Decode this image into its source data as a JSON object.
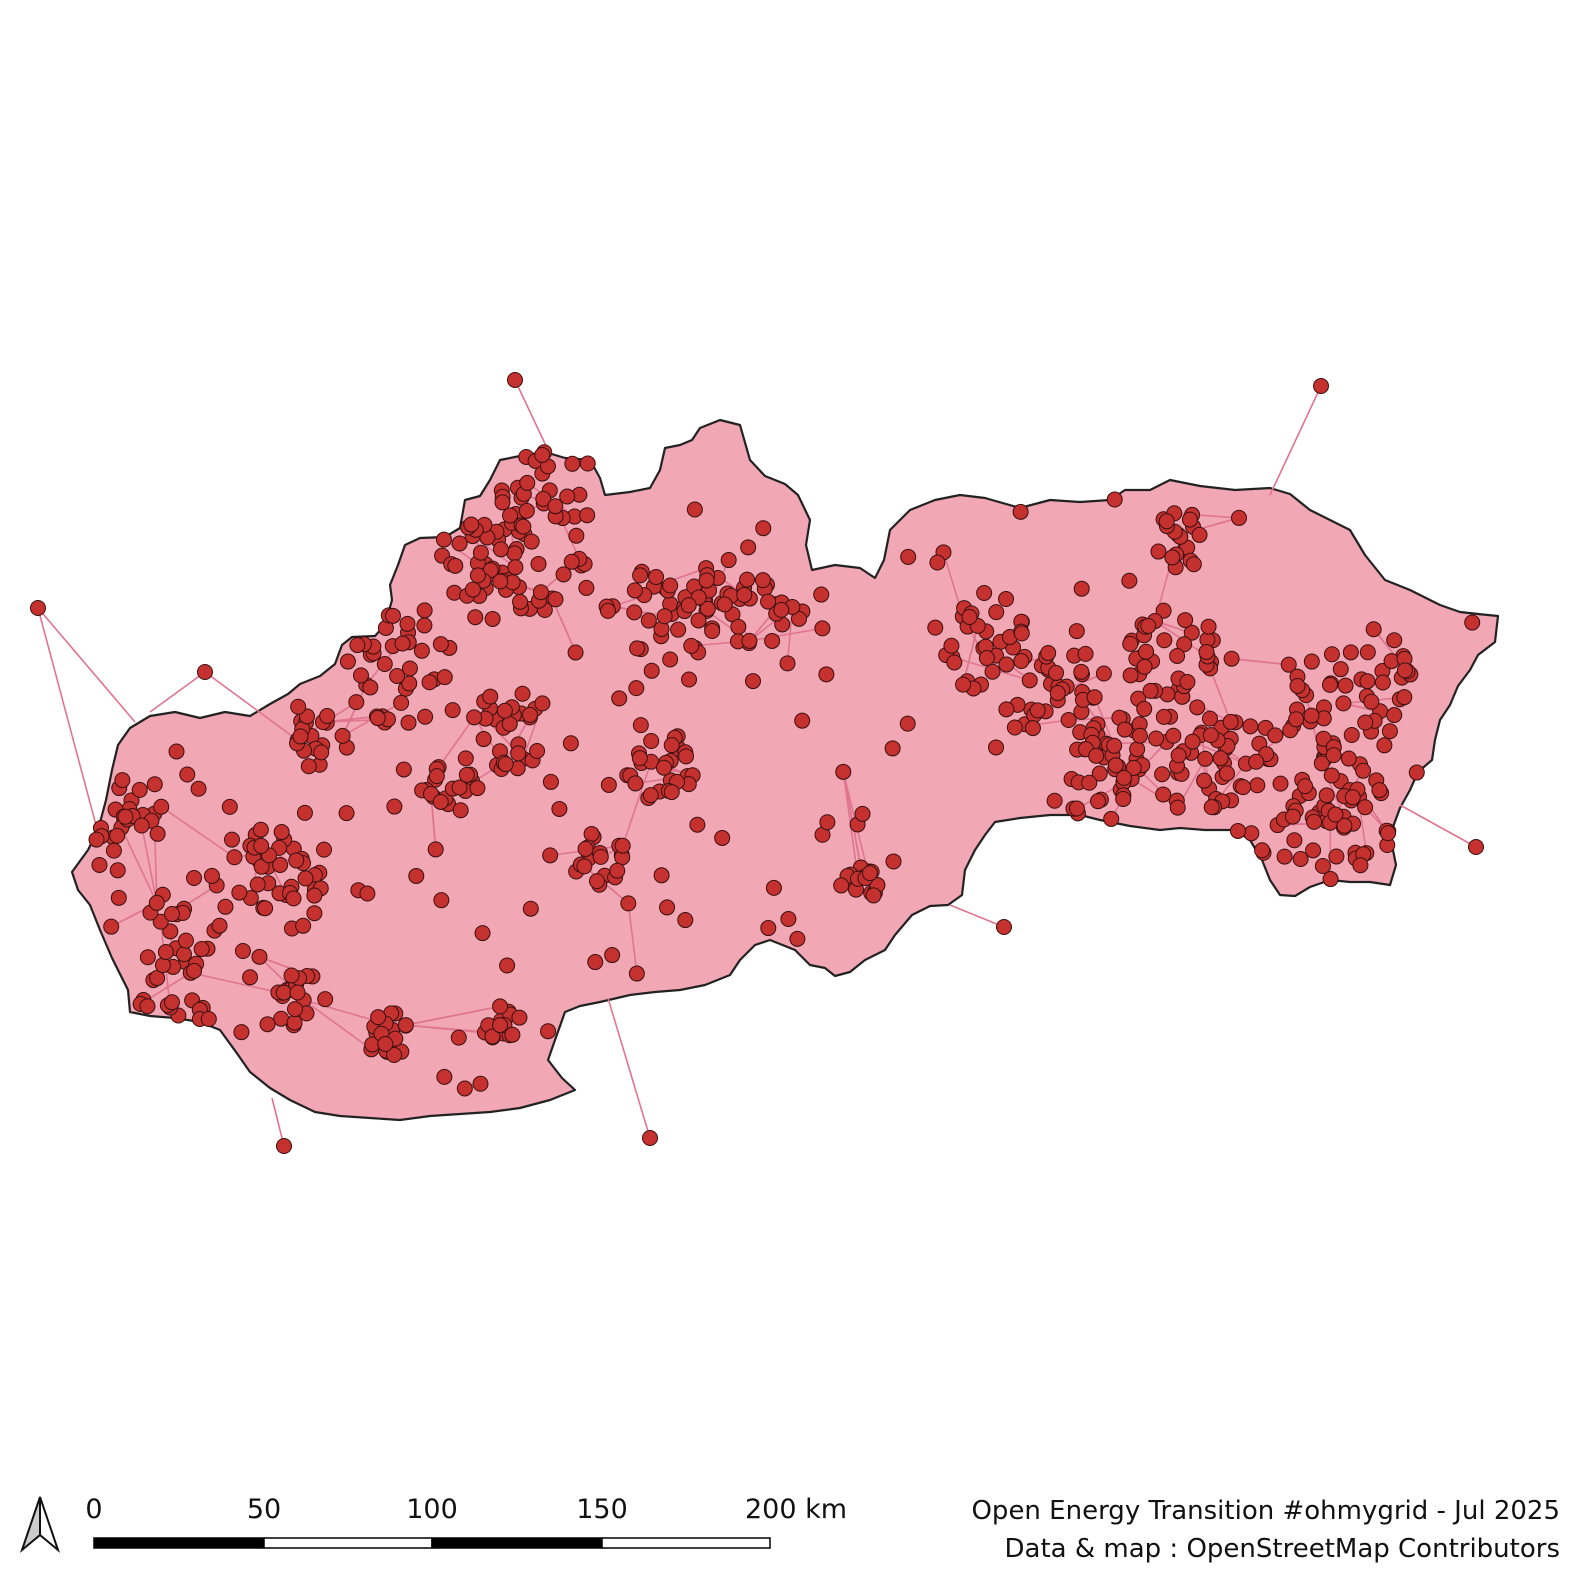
{
  "map": {
    "region_fill": "#f2a7b4",
    "border_color": "#222222",
    "line_color": "#e07590",
    "node_fill": "#c4312f",
    "node_stroke": "#3a1010"
  },
  "north_arrow": {
    "icon": "north-arrow-icon"
  },
  "scale_bar": {
    "labels": [
      "0",
      "50",
      "100",
      "150",
      "200 km"
    ]
  },
  "credits": {
    "line1": "Open Energy Transition #ohmygrid - Jul 2025",
    "line2": "Data & map : OpenStreetMap Contributors"
  }
}
